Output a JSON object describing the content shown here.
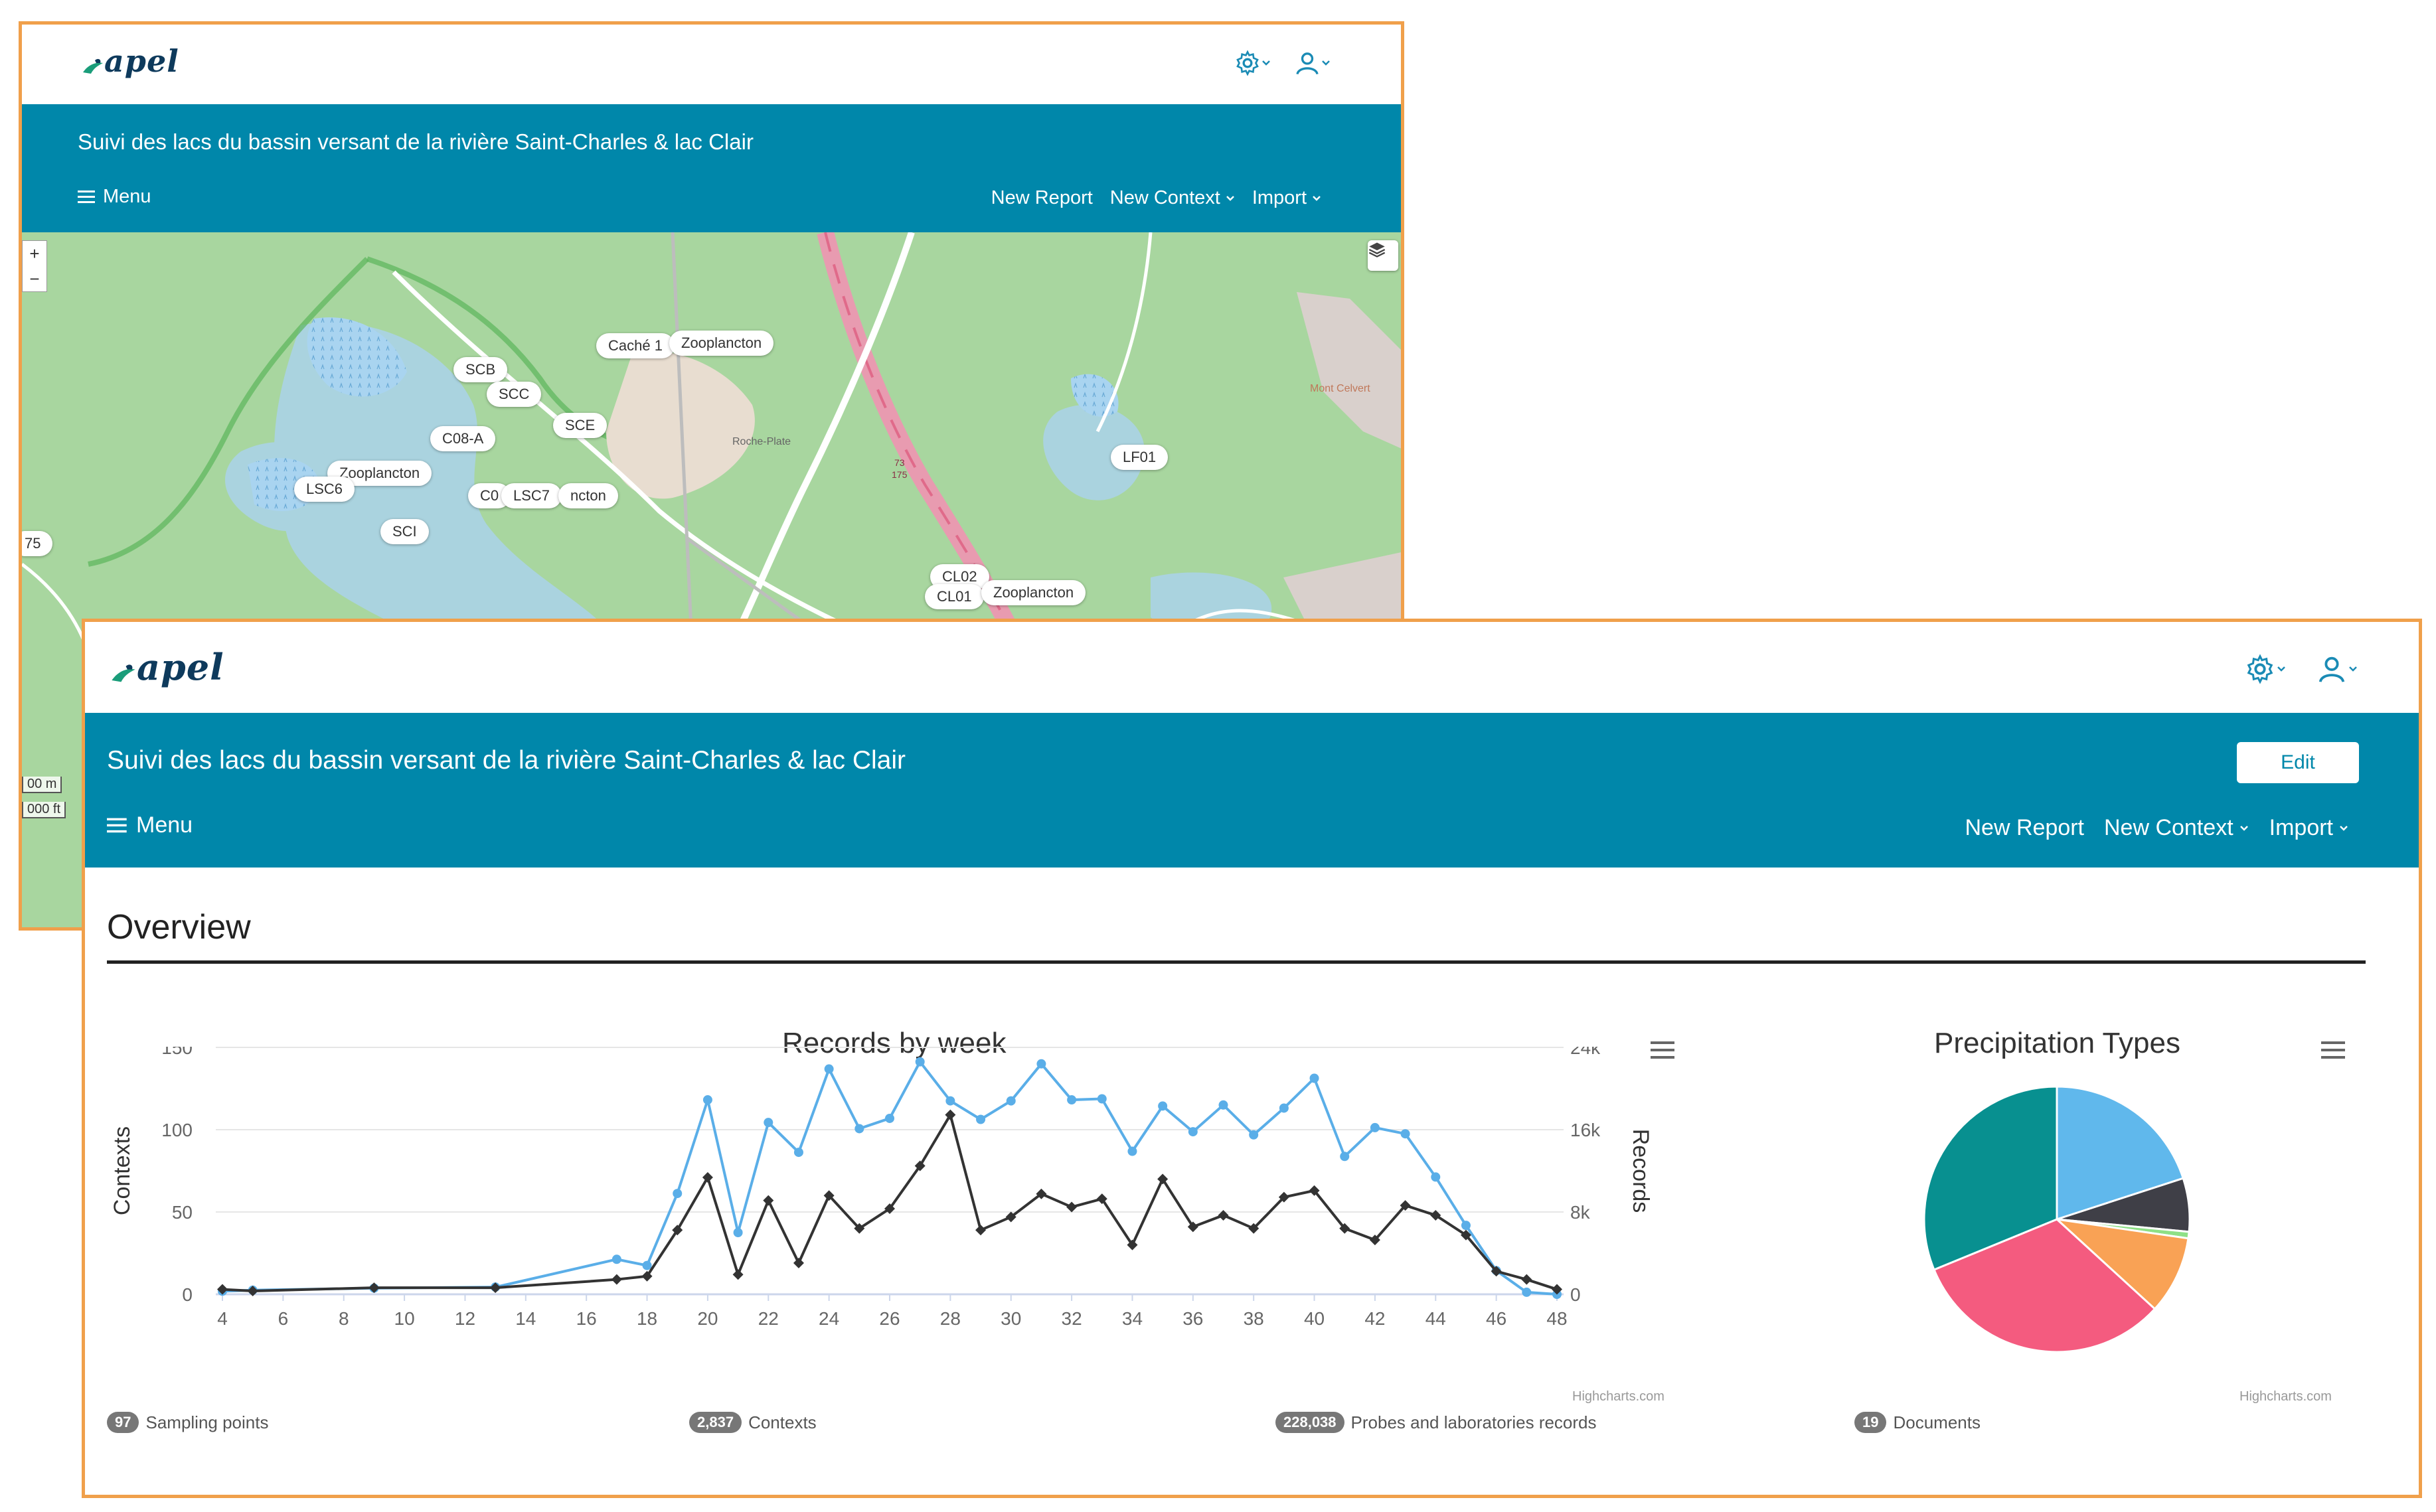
{
  "app": {
    "logo": "apel",
    "title": "Suivi des lacs du bassin versant de la rivière Saint-Charles & lac Clair",
    "menu_label": "Menu",
    "nav": {
      "new_report": "New Report",
      "new_context": "New Context",
      "import": "Import"
    },
    "edit_label": "Edit",
    "icons": {
      "settings": "gear-icon",
      "user": "user-icon",
      "menu": "hamburger-icon",
      "dropdown": "chevron-down-icon"
    },
    "colors": {
      "brand_blue": "#0087aa",
      "frame": "#f0a04b",
      "series_contexts": "#333333",
      "series_records": "#5aaee8"
    }
  },
  "map": {
    "labels": [
      "Caché 1",
      "Zooplancton",
      "SCB",
      "SCC",
      "SCE",
      "C08-A",
      "Zooplancton",
      "LSC6",
      "C0",
      "LSC7",
      "ncton",
      "SCI",
      "LF01",
      "CL02",
      "CL01",
      "Zooplancton",
      "75",
      "73",
      "175",
      "Roche-Plate",
      "Mont Celvert"
    ],
    "zoom_in": "+",
    "zoom_out": "−",
    "scale": [
      "00 m",
      "000 ft"
    ]
  },
  "overview": {
    "heading": "Overview",
    "stats": [
      {
        "count": "97",
        "label": "Sampling points"
      },
      {
        "count": "2,837",
        "label": "Contexts"
      },
      {
        "count": "228,038",
        "label": "Probes and laboratories records"
      },
      {
        "count": "19",
        "label": "Documents"
      }
    ]
  },
  "chart_data": [
    {
      "type": "line",
      "title": "Records by week",
      "xlabel": "",
      "ylabel": "Contexts",
      "y2label": "Records",
      "xlim": [
        4,
        48
      ],
      "ylim": [
        0,
        150
      ],
      "y2lim": [
        0,
        24000
      ],
      "x_ticks": [
        "4",
        "6",
        "8",
        "10",
        "12",
        "14",
        "16",
        "18",
        "20",
        "22",
        "24",
        "26",
        "28",
        "30",
        "32",
        "34",
        "36",
        "38",
        "40",
        "42",
        "44",
        "46",
        "48"
      ],
      "y_ticks": [
        "0",
        "50",
        "100",
        "150"
      ],
      "y2_ticks": [
        "0",
        "8k",
        "16k",
        "24k"
      ],
      "credits": "Highcharts.com",
      "series": [
        {
          "name": "",
          "axis": "left",
          "color": "#333333",
          "marker": "diamond",
          "x": [
            4,
            5,
            9,
            13,
            17,
            18,
            19,
            20,
            21,
            22,
            23,
            24,
            25,
            26,
            27,
            28,
            29,
            30,
            31,
            32,
            33,
            34,
            35,
            36,
            37,
            38,
            39,
            40,
            41,
            42,
            43,
            44,
            45,
            46,
            47,
            48
          ],
          "y": [
            3,
            2,
            4,
            4,
            9,
            11,
            39,
            71,
            12,
            57,
            19,
            60,
            40,
            52,
            78,
            109,
            39,
            47,
            61,
            53,
            58,
            30,
            70,
            41,
            48,
            40,
            59,
            63,
            40,
            33,
            54,
            48,
            36,
            14,
            9,
            3
          ]
        },
        {
          "name": "",
          "axis": "right",
          "color": "#5aaee8",
          "marker": "circle",
          "x": [
            4,
            5,
            9,
            13,
            17,
            18,
            19,
            20,
            21,
            22,
            23,
            24,
            25,
            26,
            27,
            28,
            29,
            30,
            31,
            32,
            33,
            34,
            35,
            36,
            37,
            38,
            39,
            40,
            41,
            42,
            43,
            44,
            45,
            46,
            47,
            48
          ],
          "y": [
            300,
            400,
            600,
            700,
            3400,
            2800,
            9800,
            18900,
            6000,
            16700,
            13800,
            21900,
            16100,
            17100,
            22600,
            18800,
            17000,
            18800,
            22400,
            18900,
            19000,
            13900,
            18300,
            15800,
            18400,
            15500,
            18100,
            21000,
            13400,
            16200,
            15600,
            11400,
            6700,
            2300,
            200,
            0
          ]
        }
      ]
    },
    {
      "type": "pie",
      "title": "Precipitation Types",
      "credits": "Highcharts.com",
      "slices": [
        {
          "value": 20.0,
          "color": "#60b8ec"
        },
        {
          "value": 6.5,
          "color": "#3f3f47"
        },
        {
          "value": 0.8,
          "color": "#8ee086"
        },
        {
          "value": 9.5,
          "color": "#f9a255"
        },
        {
          "value": 32.0,
          "color": "#f45b7f"
        },
        {
          "value": 31.2,
          "color": "#089090"
        }
      ]
    }
  ]
}
